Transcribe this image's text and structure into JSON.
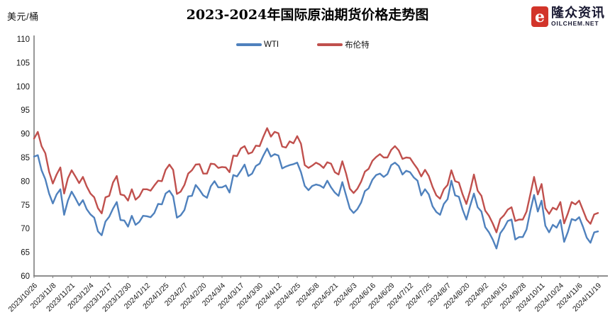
{
  "header": {
    "unit_label": "美元/桶",
    "title": "2023-2024年国际原油期货价格走势图",
    "logo": {
      "icon": "oilchem-logo-icon",
      "icon_glyph": "e",
      "brand": "隆众资讯",
      "domain": "OILCHEM.NET",
      "icon_color": "#D2342A",
      "text_color": "#1A1A33"
    }
  },
  "chart_data": {
    "type": "line",
    "title": "2023-2024年国际原油期货价格走势图",
    "ylabel": "美元/桶",
    "xlabel": "",
    "ylim": [
      60,
      110
    ],
    "ytick_step": 5,
    "grid": false,
    "legend_position": "top-center",
    "axis_color": "#7F7F7F",
    "x_labels": [
      "2023/10/26",
      "2023/11/8",
      "2023/11/21",
      "2023/12/4",
      "2023/12/17",
      "2023/12/30",
      "2024/1/12",
      "2024/1/25",
      "2024/2/7",
      "2024/2/20",
      "2024/3/4",
      "2024/3/17",
      "2024/3/30",
      "2024/4/12",
      "2024/4/25",
      "2024/5/8",
      "2024/5/21",
      "2024/6/3",
      "2024/6/16",
      "2024/6/29",
      "2024/7/12",
      "2024/7/25",
      "2024/8/7",
      "2024/8/20",
      "2024/9/2",
      "2024/9/15",
      "2024/9/28",
      "2024/10/11",
      "2024/10/24",
      "2024/11/6",
      "2024/11/19"
    ],
    "series": [
      {
        "name": "WTI",
        "color": "#4F81BD",
        "values": [
          85.2,
          85.5,
          82.3,
          80.4,
          77.4,
          75.3,
          77.2,
          78.3,
          72.9,
          75.9,
          77.8,
          76.4,
          74.9,
          76.0,
          74.1,
          73.0,
          72.3,
          69.4,
          68.6,
          71.5,
          72.5,
          74.2,
          75.6,
          71.8,
          71.7,
          70.4,
          72.7,
          70.8,
          71.4,
          72.7,
          72.6,
          72.4,
          73.3,
          75.2,
          75.1,
          77.4,
          78.0,
          76.8,
          72.3,
          72.8,
          73.9,
          76.8,
          76.9,
          79.2,
          78.2,
          77.0,
          76.5,
          78.9,
          80.0,
          78.7,
          78.7,
          79.1,
          77.6,
          81.3,
          81.0,
          82.2,
          83.5,
          81.1,
          81.6,
          83.2,
          83.7,
          85.4,
          86.9,
          85.2,
          85.7,
          85.4,
          82.7,
          83.1,
          83.4,
          83.6,
          83.9,
          81.9,
          79.0,
          78.1,
          79.0,
          79.3,
          79.1,
          78.6,
          80.1,
          78.7,
          77.6,
          76.9,
          79.8,
          77.0,
          74.2,
          73.3,
          74.1,
          75.5,
          77.9,
          78.5,
          80.3,
          81.3,
          81.6,
          80.9,
          81.5,
          83.4,
          83.9,
          83.2,
          81.4,
          82.2,
          81.9,
          80.8,
          80.1,
          77.0,
          78.3,
          77.2,
          74.7,
          73.5,
          72.9,
          75.2,
          76.2,
          80.1,
          77.0,
          76.7,
          74.0,
          71.9,
          74.8,
          77.4,
          74.5,
          73.6,
          70.3,
          69.2,
          67.7,
          65.8,
          69.0,
          70.1,
          71.6,
          71.9,
          67.7,
          68.2,
          68.2,
          69.8,
          73.7,
          77.1,
          73.6,
          75.9,
          70.6,
          69.2,
          70.8,
          70.2,
          71.8,
          67.2,
          69.3,
          72.0,
          71.7,
          72.4,
          70.4,
          68.1,
          67.0,
          69.2,
          69.4
        ]
      },
      {
        "name": "布伦特",
        "color": "#C0504D",
        "values": [
          89.0,
          90.4,
          87.4,
          85.9,
          82.0,
          79.5,
          81.4,
          82.9,
          77.4,
          80.6,
          82.3,
          81.0,
          79.6,
          80.9,
          78.9,
          77.4,
          76.6,
          74.3,
          73.2,
          76.6,
          76.9,
          79.7,
          81.1,
          77.2,
          77.0,
          75.9,
          78.3,
          76.1,
          76.8,
          78.3,
          78.3,
          78.0,
          79.1,
          80.1,
          80.0,
          82.4,
          83.5,
          82.4,
          77.3,
          77.8,
          79.2,
          81.6,
          82.3,
          83.5,
          83.6,
          81.6,
          81.6,
          83.7,
          83.6,
          82.8,
          83.0,
          82.9,
          81.9,
          85.4,
          85.3,
          86.9,
          87.4,
          85.8,
          86.1,
          87.5,
          87.4,
          89.4,
          91.2,
          89.4,
          90.4,
          90.1,
          87.3,
          87.1,
          88.4,
          88.0,
          89.5,
          87.9,
          83.4,
          82.8,
          83.3,
          83.9,
          83.5,
          82.8,
          84.0,
          83.7,
          81.9,
          81.4,
          84.2,
          81.6,
          78.4,
          77.5,
          78.4,
          79.9,
          82.0,
          82.6,
          84.3,
          85.1,
          85.7,
          85.0,
          85.0,
          86.6,
          87.4,
          86.5,
          84.7,
          85.0,
          84.9,
          83.7,
          82.6,
          81.0,
          82.4,
          81.1,
          78.8,
          77.0,
          76.3,
          78.3,
          79.2,
          82.3,
          80.0,
          79.7,
          77.2,
          75.2,
          78.0,
          81.4,
          78.0,
          76.9,
          73.8,
          72.7,
          71.1,
          69.2,
          72.0,
          72.8,
          74.0,
          74.5,
          71.6,
          71.9,
          71.9,
          73.6,
          77.2,
          80.9,
          77.2,
          79.4,
          74.3,
          73.1,
          74.4,
          74.0,
          75.6,
          71.1,
          73.2,
          75.6,
          75.1,
          75.9,
          73.9,
          71.9,
          71.0,
          73.0,
          73.3
        ]
      }
    ]
  }
}
